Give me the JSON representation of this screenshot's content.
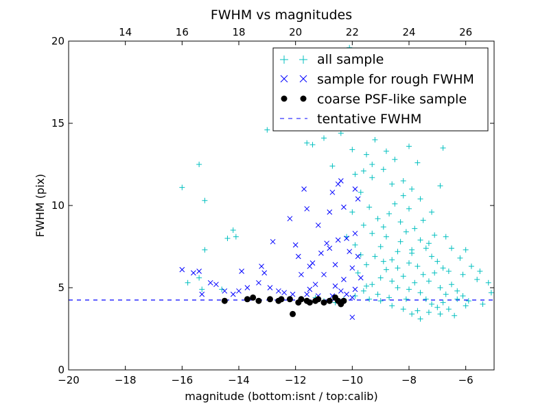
{
  "chart_data": {
    "type": "scatter",
    "title": "FWHM vs magnitudes",
    "xlabel": "magnitude (bottom:isnt / top:calib)",
    "ylabel": "FWHM (pix)",
    "xlim": [
      -20,
      -5
    ],
    "ylim": [
      0,
      20
    ],
    "x_ticks": [
      -20,
      -18,
      -16,
      -14,
      -12,
      -10,
      -8,
      -6
    ],
    "x_tick_labels": [
      "−20",
      "−18",
      "−16",
      "−14",
      "−12",
      "−10",
      "−8",
      "−6"
    ],
    "y_ticks": [
      0,
      5,
      10,
      15,
      20
    ],
    "y_tick_labels": [
      "0",
      "5",
      "10",
      "15",
      "20"
    ],
    "top_axis": {
      "offset": 32,
      "ticks": [
        14,
        16,
        18,
        20,
        22,
        24,
        26
      ],
      "tick_labels": [
        "14",
        "16",
        "18",
        "20",
        "22",
        "24",
        "26"
      ]
    },
    "grid": false,
    "legend_position": "top-right",
    "legend": [
      {
        "label": "all sample",
        "marker": "plus",
        "color": "#00bfbf"
      },
      {
        "label": "sample for rough FWHM",
        "marker": "x",
        "color": "#0000ff"
      },
      {
        "label": "coarse PSF-like sample",
        "marker": "dot",
        "color": "#000000"
      },
      {
        "label": "tentative FWHM",
        "marker": "dashed-line",
        "color": "#0000ff"
      }
    ],
    "tentative_fwhm": 4.25,
    "series": [
      {
        "name": "all sample",
        "marker": "plus",
        "color": "#00bfbf",
        "points": [
          [
            -16.0,
            11.1
          ],
          [
            -15.4,
            12.5
          ],
          [
            -15.2,
            10.3
          ],
          [
            -15.2,
            7.3
          ],
          [
            -14.4,
            8.0
          ],
          [
            -14.2,
            8.5
          ],
          [
            -14.1,
            8.1
          ],
          [
            -15.8,
            5.3
          ],
          [
            -15.4,
            5.6
          ],
          [
            -15.3,
            4.9
          ],
          [
            -14.6,
            4.9
          ],
          [
            -13.0,
            14.6
          ],
          [
            -12.3,
            15.4
          ],
          [
            -11.6,
            13.8
          ],
          [
            -11.4,
            13.7
          ],
          [
            -11.0,
            14.1
          ],
          [
            -10.8,
            15.0
          ],
          [
            -10.5,
            16.3
          ],
          [
            -10.1,
            19.6
          ],
          [
            -9.8,
            18.1
          ],
          [
            -9.6,
            16.1
          ],
          [
            -9.3,
            14.9
          ],
          [
            -9.0,
            17.5
          ],
          [
            -8.7,
            19.4
          ],
          [
            -8.4,
            15.6
          ],
          [
            -8.1,
            16.2
          ],
          [
            -7.8,
            15.2
          ],
          [
            -7.4,
            14.8
          ],
          [
            -6.8,
            13.5
          ],
          [
            -10.2,
            17.0
          ],
          [
            -9.5,
            13.1
          ],
          [
            -8.9,
            12.2
          ],
          [
            -8.2,
            11.5
          ],
          [
            -7.6,
            10.4
          ],
          [
            -7.2,
            9.6
          ],
          [
            -6.7,
            8.1
          ],
          [
            -6.0,
            7.3
          ],
          [
            -5.5,
            6.0
          ],
          [
            -5.2,
            5.3
          ],
          [
            -5.1,
            4.7
          ],
          [
            -6.0,
            3.9
          ],
          [
            -6.3,
            4.3
          ],
          [
            -7.6,
            3.1
          ],
          [
            -7.9,
            3.4
          ],
          [
            -8.2,
            3.7
          ],
          [
            -6.4,
            3.3
          ],
          [
            -11.3,
            4.4
          ],
          [
            -11.0,
            4.2
          ],
          [
            -10.6,
            4.1
          ],
          [
            -10.3,
            4.3
          ],
          [
            -9.9,
            4.5
          ],
          [
            -9.6,
            4.8
          ],
          [
            -9.3,
            5.2
          ],
          [
            -9.0,
            5.6
          ],
          [
            -8.8,
            6.1
          ],
          [
            -8.6,
            6.7
          ],
          [
            -8.4,
            7.2
          ],
          [
            -8.3,
            7.8
          ],
          [
            -8.1,
            8.4
          ],
          [
            -8.0,
            6.5
          ],
          [
            -7.9,
            7.1
          ],
          [
            -7.7,
            6.3
          ],
          [
            -7.5,
            5.8
          ],
          [
            -7.3,
            5.4
          ],
          [
            -7.1,
            5.9
          ],
          [
            -6.9,
            5.0
          ],
          [
            -6.7,
            4.6
          ],
          [
            -6.5,
            5.2
          ],
          [
            -6.3,
            4.8
          ],
          [
            -6.1,
            4.5
          ],
          [
            -9.7,
            10.8
          ],
          [
            -9.4,
            9.9
          ],
          [
            -9.1,
            9.2
          ],
          [
            -8.9,
            8.7
          ],
          [
            -8.7,
            9.5
          ],
          [
            -8.5,
            10.1
          ],
          [
            -8.3,
            9.0
          ],
          [
            -8.0,
            9.8
          ],
          [
            -7.8,
            8.6
          ],
          [
            -7.6,
            7.9
          ],
          [
            -7.4,
            7.4
          ],
          [
            -7.2,
            6.9
          ],
          [
            -7.0,
            6.6
          ],
          [
            -6.8,
            6.2
          ],
          [
            -9.9,
            7.6
          ],
          [
            -9.7,
            7.0
          ],
          [
            -9.5,
            6.4
          ],
          [
            -9.2,
            6.9
          ],
          [
            -9.0,
            7.5
          ],
          [
            -8.8,
            8.1
          ],
          [
            -8.6,
            5.4
          ],
          [
            -8.4,
            5.0
          ],
          [
            -8.2,
            5.7
          ],
          [
            -8.0,
            4.9
          ],
          [
            -7.8,
            5.3
          ],
          [
            -7.6,
            4.7
          ],
          [
            -7.4,
            4.3
          ],
          [
            -7.2,
            4.0
          ],
          [
            -7.0,
            3.8
          ],
          [
            -6.8,
            4.1
          ],
          [
            -6.6,
            3.7
          ],
          [
            -8.7,
            4.4
          ],
          [
            -9.1,
            4.6
          ],
          [
            -9.4,
            4.3
          ],
          [
            -8.5,
            12.8
          ],
          [
            -8.0,
            13.6
          ],
          [
            -9.2,
            14.0
          ],
          [
            -9.8,
            15.3
          ],
          [
            -10.4,
            14.4
          ],
          [
            -7.7,
            12.6
          ],
          [
            -6.9,
            11.2
          ],
          [
            -7.9,
            11.0
          ],
          [
            -8.6,
            11.3
          ],
          [
            -9.3,
            11.7
          ],
          [
            -9.6,
            12.1
          ],
          [
            -10.0,
            13.4
          ],
          [
            -10.7,
            12.4
          ],
          [
            -8.2,
            10.6
          ],
          [
            -7.5,
            9.1
          ],
          [
            -7.1,
            8.2
          ],
          [
            -6.5,
            7.4
          ],
          [
            -6.2,
            6.8
          ],
          [
            -5.8,
            6.3
          ],
          [
            -5.6,
            5.5
          ],
          [
            -5.9,
            4.2
          ],
          [
            -5.4,
            4.0
          ],
          [
            -6.1,
            5.8
          ],
          [
            -6.6,
            6.0
          ],
          [
            -7.3,
            7.7
          ],
          [
            -7.9,
            7.3
          ],
          [
            -8.4,
            6.2
          ],
          [
            -8.9,
            6.6
          ],
          [
            -9.3,
            8.3
          ],
          [
            -9.6,
            8.8
          ],
          [
            -10.0,
            9.6
          ],
          [
            -10.2,
            8.1
          ],
          [
            -9.8,
            5.9
          ],
          [
            -9.5,
            5.1
          ],
          [
            -9.0,
            4.2
          ],
          [
            -8.6,
            3.9
          ],
          [
            -8.1,
            4.3
          ],
          [
            -7.7,
            3.6
          ],
          [
            -7.3,
            3.5
          ],
          [
            -6.9,
            3.4
          ],
          [
            -9.9,
            11.9
          ],
          [
            -9.3,
            12.5
          ],
          [
            -8.8,
            13.3
          ]
        ]
      },
      {
        "name": "sample for rough FWHM",
        "marker": "x",
        "color": "#0000ff",
        "points": [
          [
            -16.0,
            6.1
          ],
          [
            -15.4,
            6.0
          ],
          [
            -15.3,
            4.6
          ],
          [
            -15.0,
            5.3
          ],
          [
            -14.8,
            5.2
          ],
          [
            -14.5,
            4.8
          ],
          [
            -14.2,
            4.6
          ],
          [
            -13.9,
            6.0
          ],
          [
            -13.7,
            5.0
          ],
          [
            -13.2,
            6.3
          ],
          [
            -13.1,
            5.9
          ],
          [
            -12.8,
            7.8
          ],
          [
            -12.6,
            4.8
          ],
          [
            -12.4,
            4.7
          ],
          [
            -12.2,
            9.2
          ],
          [
            -12.0,
            7.6
          ],
          [
            -11.9,
            6.9
          ],
          [
            -11.7,
            11.0
          ],
          [
            -11.6,
            9.8
          ],
          [
            -11.5,
            6.3
          ],
          [
            -11.4,
            6.5
          ],
          [
            -11.3,
            5.2
          ],
          [
            -11.2,
            8.8
          ],
          [
            -11.1,
            7.1
          ],
          [
            -11.0,
            5.8
          ],
          [
            -10.9,
            7.7
          ],
          [
            -10.8,
            9.6
          ],
          [
            -10.7,
            10.8
          ],
          [
            -10.6,
            6.4
          ],
          [
            -10.5,
            11.3
          ],
          [
            -10.4,
            11.5
          ],
          [
            -10.3,
            9.9
          ],
          [
            -10.2,
            8.0
          ],
          [
            -10.1,
            7.2
          ],
          [
            -10.0,
            6.2
          ],
          [
            -9.9,
            8.3
          ],
          [
            -9.8,
            6.9
          ],
          [
            -9.7,
            5.6
          ],
          [
            -10.6,
            5.1
          ],
          [
            -10.4,
            4.8
          ],
          [
            -10.2,
            4.6
          ],
          [
            -10.0,
            4.4
          ],
          [
            -9.9,
            4.9
          ],
          [
            -9.8,
            10.4
          ],
          [
            -9.9,
            11.0
          ],
          [
            -10.0,
            3.2
          ],
          [
            -11.8,
            5.8
          ],
          [
            -12.9,
            5.0
          ],
          [
            -13.3,
            5.3
          ],
          [
            -11.5,
            4.9
          ],
          [
            -11.2,
            4.5
          ],
          [
            -10.7,
            4.5
          ],
          [
            -10.3,
            5.5
          ],
          [
            -10.5,
            7.9
          ],
          [
            -10.8,
            7.4
          ],
          [
            -11.6,
            4.6
          ],
          [
            -12.1,
            4.6
          ],
          [
            -14.0,
            4.8
          ],
          [
            -15.6,
            5.9
          ]
        ]
      },
      {
        "name": "coarse PSF-like sample",
        "marker": "dot",
        "color": "#000000",
        "points": [
          [
            -14.5,
            4.2
          ],
          [
            -13.7,
            4.3
          ],
          [
            -13.5,
            4.4
          ],
          [
            -13.3,
            4.2
          ],
          [
            -12.9,
            4.3
          ],
          [
            -12.6,
            4.2
          ],
          [
            -12.5,
            4.3
          ],
          [
            -12.2,
            4.3
          ],
          [
            -12.1,
            3.4
          ],
          [
            -11.9,
            4.1
          ],
          [
            -11.8,
            4.3
          ],
          [
            -11.6,
            4.2
          ],
          [
            -11.5,
            4.1
          ],
          [
            -11.3,
            4.2
          ],
          [
            -11.2,
            4.3
          ],
          [
            -11.0,
            4.1
          ],
          [
            -10.8,
            4.2
          ],
          [
            -10.6,
            4.4
          ],
          [
            -10.5,
            4.2
          ],
          [
            -10.4,
            4.0
          ],
          [
            -10.3,
            4.2
          ]
        ]
      }
    ]
  }
}
